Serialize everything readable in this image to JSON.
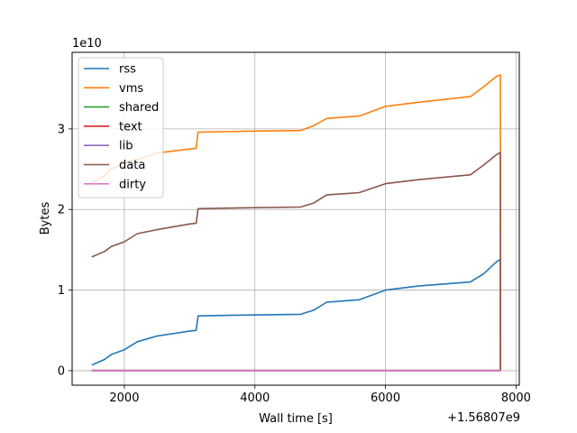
{
  "chart_data": {
    "type": "line",
    "xlabel": "Wall time [s]",
    "ylabel": "Bytes",
    "x_offset_text": "+1.56807e9",
    "y_scale_text": "1e10",
    "xlim": [
      1200,
      8050
    ],
    "ylim": [
      -0.18,
      3.95
    ],
    "x_ticks": [
      2000,
      4000,
      6000,
      8000
    ],
    "x_tick_labels": [
      "2000",
      "4000",
      "6000",
      "8000"
    ],
    "y_ticks": [
      0,
      1,
      2,
      3
    ],
    "y_tick_labels": [
      "0",
      "1",
      "2",
      "3"
    ],
    "grid": true,
    "legend": {
      "placement": "top-left"
    },
    "series": [
      {
        "name": "rss",
        "color": "#1f77b4",
        "x": [
          1500,
          1700,
          1800,
          2000,
          2200,
          2500,
          3000,
          3100,
          3130,
          3800,
          4700,
          4900,
          5100,
          5600,
          6000,
          6500,
          7300,
          7500,
          7700,
          7760,
          7762
        ],
        "y": [
          0.07,
          0.14,
          0.2,
          0.26,
          0.36,
          0.43,
          0.49,
          0.5,
          0.68,
          0.69,
          0.7,
          0.75,
          0.85,
          0.88,
          1.0,
          1.05,
          1.1,
          1.2,
          1.35,
          1.38,
          0.0
        ]
      },
      {
        "name": "vms",
        "color": "#ff7f0e",
        "x": [
          1500,
          1700,
          1800,
          2000,
          2200,
          2500,
          3000,
          3100,
          3130,
          3800,
          4700,
          4900,
          5100,
          5600,
          6000,
          6500,
          7300,
          7500,
          7700,
          7760,
          7762
        ],
        "y": [
          2.33,
          2.42,
          2.5,
          2.58,
          2.62,
          2.7,
          2.75,
          2.76,
          2.96,
          2.97,
          2.98,
          3.04,
          3.13,
          3.16,
          3.28,
          3.33,
          3.4,
          3.52,
          3.65,
          3.67,
          0.0
        ]
      },
      {
        "name": "shared",
        "color": "#2ca02c",
        "x": [
          1500,
          7760
        ],
        "y": [
          0.003,
          0.003
        ]
      },
      {
        "name": "text",
        "color": "#d62728",
        "x": [
          1500,
          7760
        ],
        "y": [
          0.001,
          0.001
        ]
      },
      {
        "name": "lib",
        "color": "#9467bd",
        "x": [
          1500,
          7760
        ],
        "y": [
          0.0,
          0.0
        ]
      },
      {
        "name": "data",
        "color": "#8c564b",
        "x": [
          1500,
          1700,
          1800,
          2000,
          2200,
          2500,
          3000,
          3100,
          3130,
          3800,
          4700,
          4900,
          5100,
          5600,
          6000,
          6500,
          7300,
          7500,
          7700,
          7760,
          7762
        ],
        "y": [
          1.41,
          1.48,
          1.54,
          1.6,
          1.7,
          1.75,
          1.82,
          1.83,
          2.01,
          2.02,
          2.03,
          2.08,
          2.18,
          2.21,
          2.32,
          2.37,
          2.43,
          2.55,
          2.68,
          2.71,
          0.0
        ]
      },
      {
        "name": "dirty",
        "color": "#e377c2",
        "x": [
          1500,
          7760
        ],
        "y": [
          0.005,
          0.005
        ]
      }
    ]
  }
}
